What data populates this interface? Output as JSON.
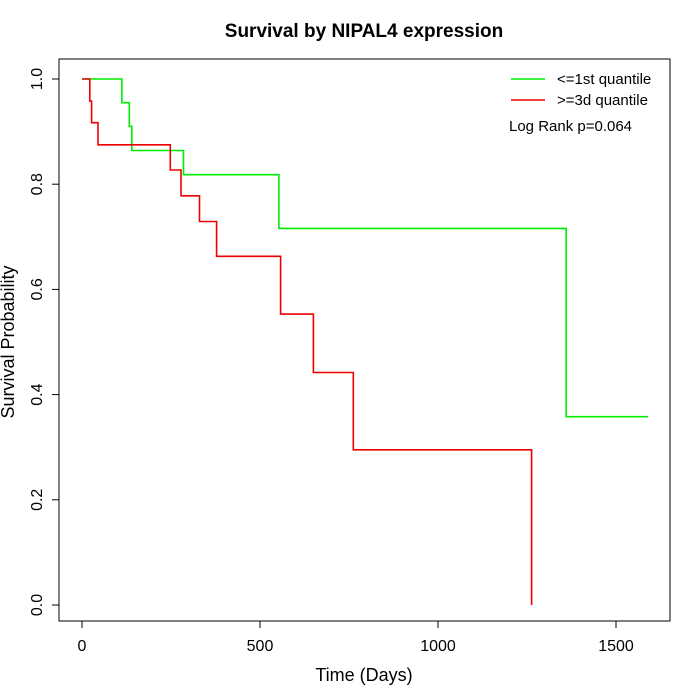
{
  "chart_data": {
    "type": "line",
    "title": "Survival by NIPAL4 expression",
    "xlabel": "Time (Days)",
    "ylabel": "Survival Probability",
    "xlim": [
      0,
      1600
    ],
    "ylim": [
      0,
      1.0
    ],
    "x_ticks": [
      0,
      500,
      1000,
      1500
    ],
    "x_tick_labels": [
      "0",
      "500",
      "1000",
      "1500"
    ],
    "y_ticks": [
      0,
      0.2,
      0.4,
      0.6,
      0.8,
      1.0
    ],
    "y_tick_labels": [
      "0.0",
      "0.2",
      "0.4",
      "0.6",
      "0.8",
      "1.0"
    ],
    "grid": false,
    "legend_position": "top-right",
    "annotation": "Log Rank p=0.064",
    "series": [
      {
        "name": "<=1st quantile",
        "color": "#00ee00",
        "step": true,
        "points": [
          [
            0,
            1.0
          ],
          [
            112,
            1.0
          ],
          [
            112,
            0.955
          ],
          [
            133,
            0.955
          ],
          [
            133,
            0.91
          ],
          [
            140,
            0.91
          ],
          [
            140,
            0.864
          ],
          [
            285,
            0.864
          ],
          [
            285,
            0.818
          ],
          [
            553,
            0.818
          ],
          [
            553,
            0.716
          ],
          [
            1360,
            0.716
          ],
          [
            1360,
            0.358
          ],
          [
            1590,
            0.358
          ]
        ]
      },
      {
        "name": ">=3d quantile",
        "color": "#ee0000",
        "step": true,
        "points": [
          [
            0,
            1.0
          ],
          [
            22,
            1.0
          ],
          [
            22,
            0.958
          ],
          [
            27,
            0.958
          ],
          [
            27,
            0.917
          ],
          [
            45,
            0.917
          ],
          [
            45,
            0.875
          ],
          [
            248,
            0.875
          ],
          [
            248,
            0.827
          ],
          [
            278,
            0.827
          ],
          [
            278,
            0.778
          ],
          [
            330,
            0.778
          ],
          [
            330,
            0.729
          ],
          [
            378,
            0.729
          ],
          [
            378,
            0.663
          ],
          [
            558,
            0.663
          ],
          [
            558,
            0.553
          ],
          [
            650,
            0.553
          ],
          [
            650,
            0.442
          ],
          [
            762,
            0.442
          ],
          [
            762,
            0.295
          ],
          [
            1263,
            0.295
          ],
          [
            1263,
            0.0
          ]
        ]
      }
    ]
  }
}
